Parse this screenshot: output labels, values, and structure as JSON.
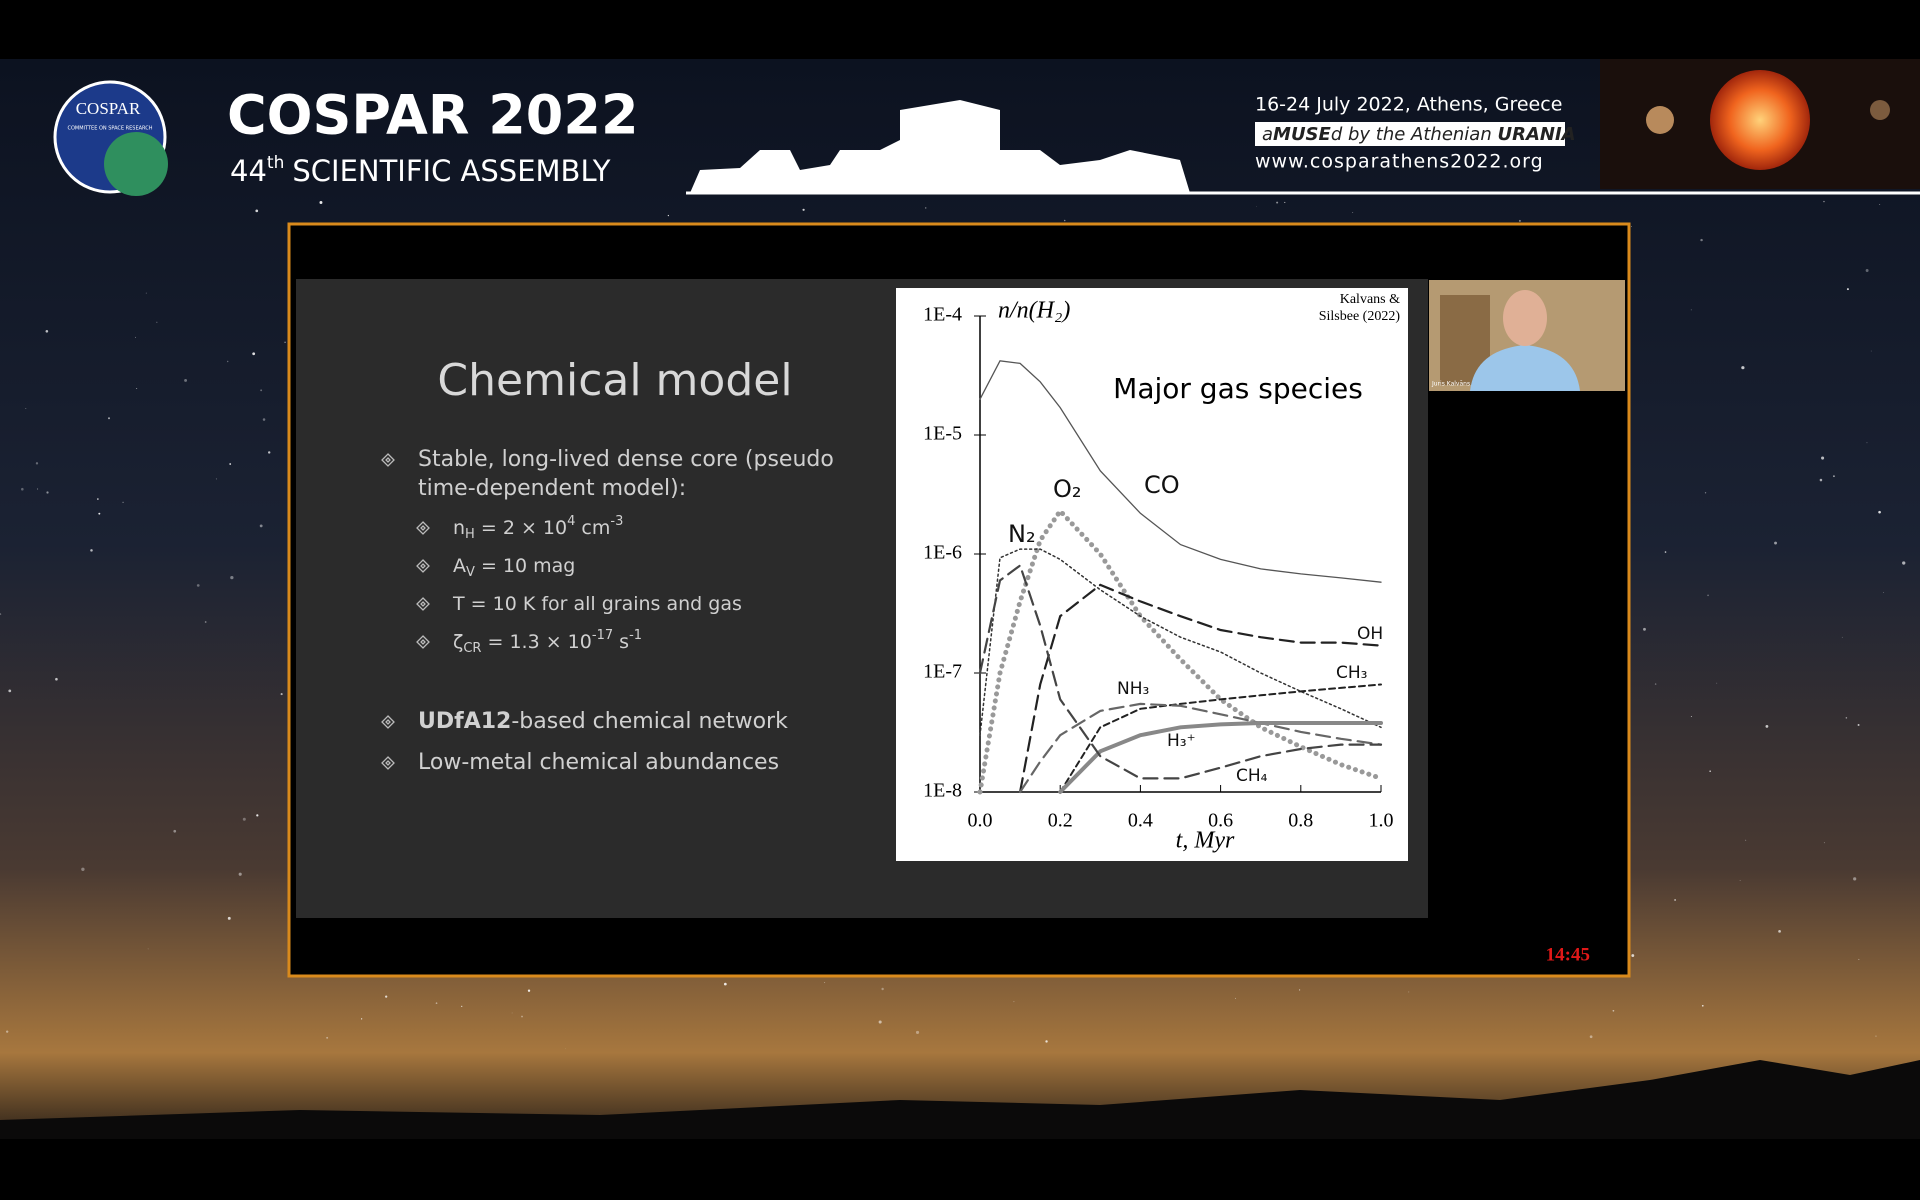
{
  "header": {
    "logo_text": "COSPAR",
    "logo_small": "COMMITTEE ON SPACE RESEARCH",
    "title": "COSPAR 2022",
    "subtitle_num": "44",
    "subtitle_sup": "th",
    "subtitle": "SCIENTIFIC ASSEMBLY",
    "dates": "16-24 July 2022, Athens, Greece",
    "tagline": [
      "a",
      "MUSE",
      "d by the Athenian ",
      "URANIA"
    ],
    "url": "www.cosparathens2022.org"
  },
  "slide": {
    "title": "Chemical model",
    "items": [
      {
        "level": 1,
        "parts": [
          {
            "text": "Stable, long-lived dense core (pseudo"
          }
        ]
      },
      {
        "level": 0,
        "parts": [
          {
            "text": "time-dependent model):"
          }
        ]
      },
      {
        "level": 2,
        "parts": [
          {
            "text": "n"
          },
          {
            "text": "H",
            "sub": true
          },
          {
            "text": " = 2 × 10"
          },
          {
            "text": "4",
            "sup": true
          },
          {
            "text": " cm"
          },
          {
            "text": "-3",
            "sup": true
          }
        ]
      },
      {
        "level": 2,
        "parts": [
          {
            "text": "A"
          },
          {
            "text": "V",
            "sub": true
          },
          {
            "text": " = 10 mag"
          }
        ]
      },
      {
        "level": 2,
        "parts": [
          {
            "text": "T = 10 K for all grains and gas"
          }
        ]
      },
      {
        "level": 2,
        "parts": [
          {
            "text": "ζ"
          },
          {
            "text": "CR",
            "sub": true
          },
          {
            "text": " = 1.3 × 10"
          },
          {
            "text": "-17",
            "sup": true
          },
          {
            "text": " s"
          },
          {
            "text": "-1",
            "sup": true
          }
        ]
      },
      {
        "level": 1,
        "parts": [
          {
            "text": "UDfA12",
            "bold": true
          },
          {
            "text": "-based chemical network"
          }
        ]
      },
      {
        "level": 1,
        "parts": [
          {
            "text": "Low-metal chemical abundances"
          }
        ]
      }
    ]
  },
  "chart_data": {
    "type": "line",
    "title": "Major gas species",
    "annotation": [
      "Kalvans &",
      "Silsbee (2022)"
    ],
    "y_label": "n/n(H₂)",
    "x_label": "t, Myr",
    "log_y": true,
    "x": [
      0,
      0.05,
      0.1,
      0.15,
      0.2,
      0.3,
      0.4,
      0.5,
      0.6,
      0.7,
      0.8,
      0.9,
      1.0
    ],
    "xlim": [
      0,
      1
    ],
    "ylim": [
      1e-08,
      0.0001
    ],
    "xticks": [
      {
        "value": 0,
        "label": "0.0"
      },
      0.2,
      0.4,
      0.6,
      0.8,
      {
        "value": 1,
        "label": "1.0"
      }
    ],
    "yticks": [
      {
        "value": 1e-08,
        "label": "1E-8"
      },
      {
        "value": 1e-07,
        "label": "1E-7"
      },
      {
        "value": 1e-06,
        "label": "1E-6"
      },
      {
        "value": 1e-05,
        "label": "1E-5"
      },
      {
        "value": 0.0001,
        "label": "1E-4"
      }
    ],
    "series": [
      {
        "name": "CO",
        "color": "#555555",
        "style": "solid",
        "values": [
          2e-05,
          4.2e-05,
          4e-05,
          2.8e-05,
          1.7e-05,
          5e-06,
          2.2e-06,
          1.2e-06,
          9e-07,
          7.5e-07,
          6.8e-07,
          6.3e-07,
          5.8e-07
        ]
      },
      {
        "name": "O₂",
        "color": "#999999",
        "style": "thick-dotted",
        "values": [
          1e-08,
          1e-07,
          4e-07,
          1.3e-06,
          2.3e-06,
          1e-06,
          3e-07,
          1.3e-07,
          6e-08,
          3.5e-08,
          2.4e-08,
          1.7e-08,
          1.3e-08
        ]
      },
      {
        "name": "N₂",
        "color": "#333333",
        "style": "dotted",
        "values": [
          3e-08,
          9.3e-07,
          1.1e-06,
          1.1e-06,
          9e-07,
          5e-07,
          3e-07,
          2e-07,
          1.5e-07,
          1e-07,
          7e-08,
          5e-08,
          3.5e-08
        ]
      },
      {
        "name": "OH",
        "color": "#222222",
        "style": "dashed",
        "values": [
          null,
          null,
          1e-08,
          8e-08,
          3e-07,
          5.5e-07,
          4e-07,
          3e-07,
          2.3e-07,
          2e-07,
          1.8e-07,
          1.8e-07,
          1.7e-07
        ]
      },
      {
        "name": "CH₃",
        "color": "#222222",
        "style": "short-dashed",
        "values": [
          null,
          null,
          null,
          null,
          1e-08,
          3.5e-08,
          5e-08,
          5.5e-08,
          6e-08,
          6.5e-08,
          7e-08,
          7.5e-08,
          8e-08
        ]
      },
      {
        "name": "NH₃",
        "color": "#666666",
        "style": "dashed",
        "values": [
          null,
          null,
          1e-08,
          1.8e-08,
          3e-08,
          4.8e-08,
          5.5e-08,
          5.3e-08,
          4.5e-08,
          3.8e-08,
          3.2e-08,
          2.8e-08,
          2.5e-08
        ]
      },
      {
        "name": "H₃⁺",
        "color": "#888888",
        "style": "thick-solid",
        "values": [
          null,
          null,
          null,
          null,
          1e-08,
          2.2e-08,
          3e-08,
          3.5e-08,
          3.7e-08,
          3.8e-08,
          3.8e-08,
          3.8e-08,
          3.8e-08
        ]
      },
      {
        "name": "CH₄",
        "color": "#444444",
        "style": "dashed",
        "values": [
          1e-07,
          6e-07,
          8e-07,
          2.5e-07,
          6e-08,
          2e-08,
          1.3e-08,
          1.3e-08,
          1.6e-08,
          2e-08,
          2.3e-08,
          2.5e-08,
          2.5e-08
        ]
      }
    ]
  },
  "webcam": {
    "caption": "Juris Kalvāns"
  },
  "timer": "14:45"
}
